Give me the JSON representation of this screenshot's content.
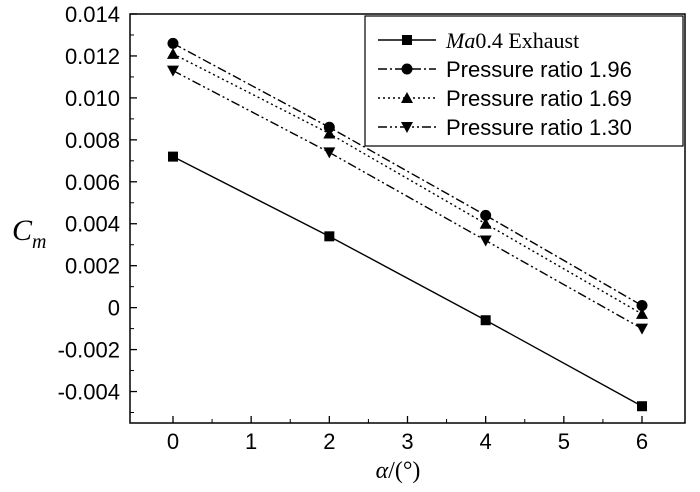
{
  "chart_data": {
    "type": "line",
    "title": "",
    "xlabel": "α/(°)",
    "ylabel": "C_m",
    "xlim": [
      -0.55,
      6.55
    ],
    "ylim": [
      -0.0055,
      0.014
    ],
    "xticks": [
      0,
      1,
      2,
      3,
      4,
      5,
      6
    ],
    "xtick_labels": [
      "0",
      "1",
      "2",
      "3",
      "4",
      "5",
      "6"
    ],
    "yticks": [
      -0.004,
      -0.002,
      0,
      0.002,
      0.004,
      0.006,
      0.008,
      0.01,
      0.012,
      0.014
    ],
    "ytick_labels": [
      "-0.004",
      "-0.002",
      "0",
      "0.002",
      "0.004",
      "0.006",
      "0.008",
      "0.010",
      "0.012",
      "0.014"
    ],
    "grid": false,
    "legend_position": "top-right",
    "series": [
      {
        "name": "Ma0.4 Exhaust",
        "name_italic": "Ma",
        "name_rest": "0.4 Exhaust",
        "marker": "square",
        "linestyle": "solid",
        "x": [
          0,
          2,
          4,
          6
        ],
        "values": [
          0.0072,
          0.0034,
          -0.0006,
          -0.0047
        ]
      },
      {
        "name": "Pressure ratio 1.96",
        "marker": "circle",
        "linestyle": "dash-dot",
        "x": [
          0,
          2,
          4,
          6
        ],
        "values": [
          0.0126,
          0.0086,
          0.0044,
          0.0001
        ]
      },
      {
        "name": "Pressure ratio 1.69",
        "marker": "triangle-up",
        "linestyle": "dotted",
        "x": [
          0,
          2,
          4,
          6
        ],
        "values": [
          0.0121,
          0.0083,
          0.004,
          -0.0003
        ]
      },
      {
        "name": "Pressure ratio 1.30",
        "marker": "triangle-down",
        "linestyle": "dash-dot-dot",
        "x": [
          0,
          2,
          4,
          6
        ],
        "values": [
          0.0113,
          0.0074,
          0.0032,
          -0.001
        ]
      }
    ]
  }
}
